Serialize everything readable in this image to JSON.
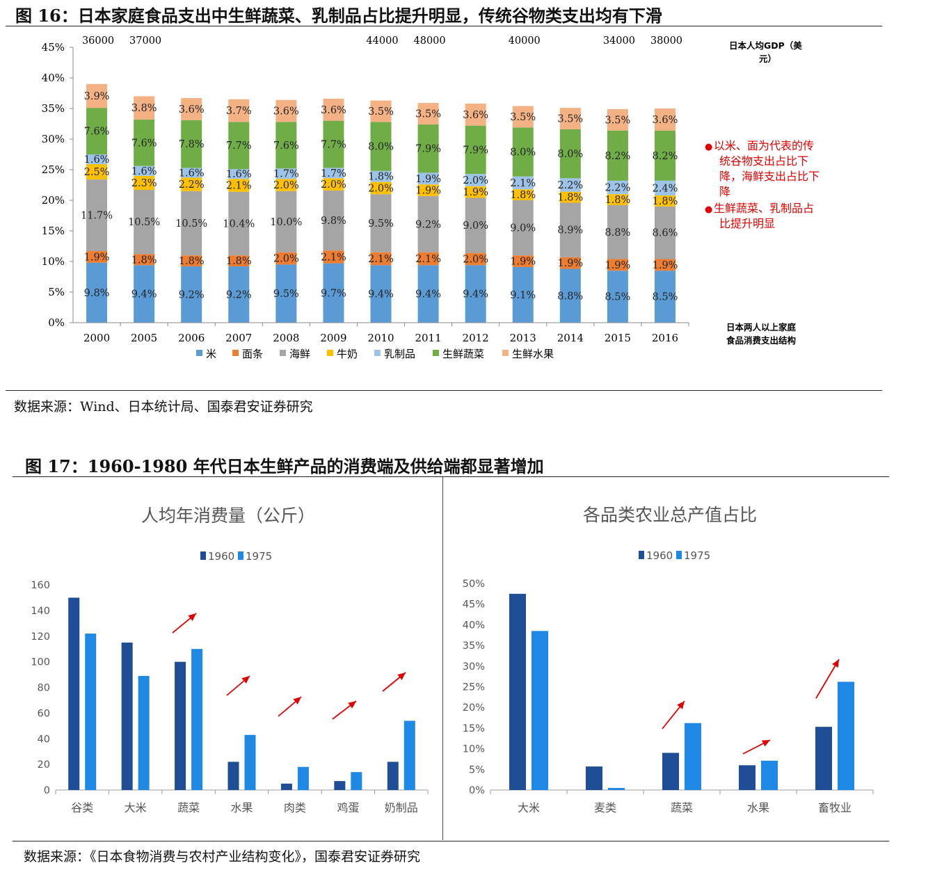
{
  "fig16": {
    "title": "图 16：日本家庭食品支出中生鲜蔬菜、乳制品占比提升明显，传统谷物类支出均有下滑",
    "source": "数据来源：Wind、日本统计局、国泰君安证券研究",
    "gdp_label_1": "日本人均GDP（美",
    "gdp_label_2": "元）",
    "side_label_1": "日本两人以上家庭",
    "side_label_2": "食品消费支出结构",
    "notes": [
      {
        "bullet": "●",
        "lines": [
          "以米、面为代表的传",
          "统谷物支出占比下",
          "降，海鲜支出占比下",
          "降"
        ]
      },
      {
        "bullet": "●",
        "lines": [
          "生鲜蔬菜、乳制品占",
          "比提升明显"
        ]
      }
    ],
    "note_color": "#e00000"
  },
  "fig17": {
    "title": "图 17：1960-1980 年代日本生鲜产品的消费端及供给端都显著增加",
    "source": "数据来源：《日本食物消费与农村产业结构变化》，国泰君安证券研究"
  },
  "chart_data": [
    {
      "type": "bar",
      "stacked": true,
      "categories": [
        "2000",
        "2005",
        "2006",
        "2007",
        "2008",
        "2009",
        "2010",
        "2011",
        "2012",
        "2013",
        "2014",
        "2015",
        "2016"
      ],
      "gdp": [
        "36000",
        "37000",
        "",
        "",
        "",
        "",
        "44000",
        "48000",
        "",
        "40000",
        "",
        "34000",
        "38000"
      ],
      "series": [
        {
          "name": "米",
          "color": "#5b9bd5",
          "values": [
            9.8,
            9.4,
            9.2,
            9.2,
            9.5,
            9.7,
            9.4,
            9.4,
            9.4,
            9.1,
            8.8,
            8.5,
            8.5
          ]
        },
        {
          "name": "面条",
          "color": "#ed7d31",
          "values": [
            1.9,
            1.8,
            1.8,
            1.8,
            2.0,
            2.1,
            2.1,
            2.1,
            2.0,
            1.9,
            1.9,
            1.9,
            1.9
          ]
        },
        {
          "name": "海鲜",
          "color": "#a5a5a5",
          "values": [
            11.7,
            10.5,
            10.5,
            10.4,
            10.0,
            9.8,
            9.5,
            9.2,
            9.0,
            9.0,
            8.9,
            8.8,
            8.6
          ]
        },
        {
          "name": "牛奶",
          "color": "#ffc000",
          "values": [
            2.5,
            2.3,
            2.2,
            2.1,
            2.0,
            2.0,
            2.0,
            1.9,
            1.9,
            1.8,
            1.8,
            1.8,
            1.8
          ]
        },
        {
          "name": "乳制品",
          "color": "#9dc3e6",
          "values": [
            1.6,
            1.6,
            1.6,
            1.6,
            1.7,
            1.7,
            1.8,
            1.9,
            2.0,
            2.1,
            2.2,
            2.2,
            2.4
          ]
        },
        {
          "name": "生鲜蔬菜",
          "color": "#70ad47",
          "values": [
            7.6,
            7.6,
            7.8,
            7.7,
            7.6,
            7.7,
            8.0,
            7.9,
            7.9,
            8.0,
            8.0,
            8.2,
            8.2
          ]
        },
        {
          "name": "生鲜水果",
          "color": "#f4b183",
          "values": [
            3.9,
            3.8,
            3.6,
            3.7,
            3.6,
            3.6,
            3.5,
            3.5,
            3.6,
            3.5,
            3.5,
            3.5,
            3.6
          ]
        }
      ],
      "yticks": [
        "0%",
        "5%",
        "10%",
        "15%",
        "20%",
        "25%",
        "30%",
        "35%",
        "40%",
        "45%"
      ],
      "ylim": [
        0,
        45
      ]
    },
    {
      "type": "bar",
      "title": "人均年消费量（公斤）",
      "categories": [
        "谷类",
        "大米",
        "蔬菜",
        "水果",
        "肉类",
        "鸡蛋",
        "奶制品"
      ],
      "series": [
        {
          "name": "1960",
          "color": "#1f4e96",
          "values": [
            150,
            115,
            100,
            22,
            5,
            7,
            22
          ]
        },
        {
          "name": "1975",
          "color": "#1e88e5",
          "values": [
            122,
            89,
            110,
            43,
            18,
            14,
            54
          ]
        }
      ],
      "yticks": [
        "0",
        "20",
        "40",
        "60",
        "80",
        "100",
        "120",
        "140",
        "160"
      ],
      "ylim": [
        0,
        160
      ],
      "legend": "top"
    },
    {
      "type": "bar",
      "title": "各品类农业总产值占比",
      "categories": [
        "大米",
        "麦类",
        "蔬菜",
        "水果",
        "畜牧业"
      ],
      "series": [
        {
          "name": "1960",
          "color": "#1f4e96",
          "values": [
            47.5,
            5.7,
            9.0,
            6.0,
            15.3
          ]
        },
        {
          "name": "1975",
          "color": "#1e88e5",
          "values": [
            38.5,
            0.5,
            16.2,
            7.1,
            26.2
          ]
        }
      ],
      "yticks": [
        "0%",
        "5%",
        "10%",
        "15%",
        "20%",
        "25%",
        "30%",
        "35%",
        "40%",
        "45%",
        "50%"
      ],
      "ylim": [
        0,
        50
      ],
      "legend": "top"
    }
  ]
}
